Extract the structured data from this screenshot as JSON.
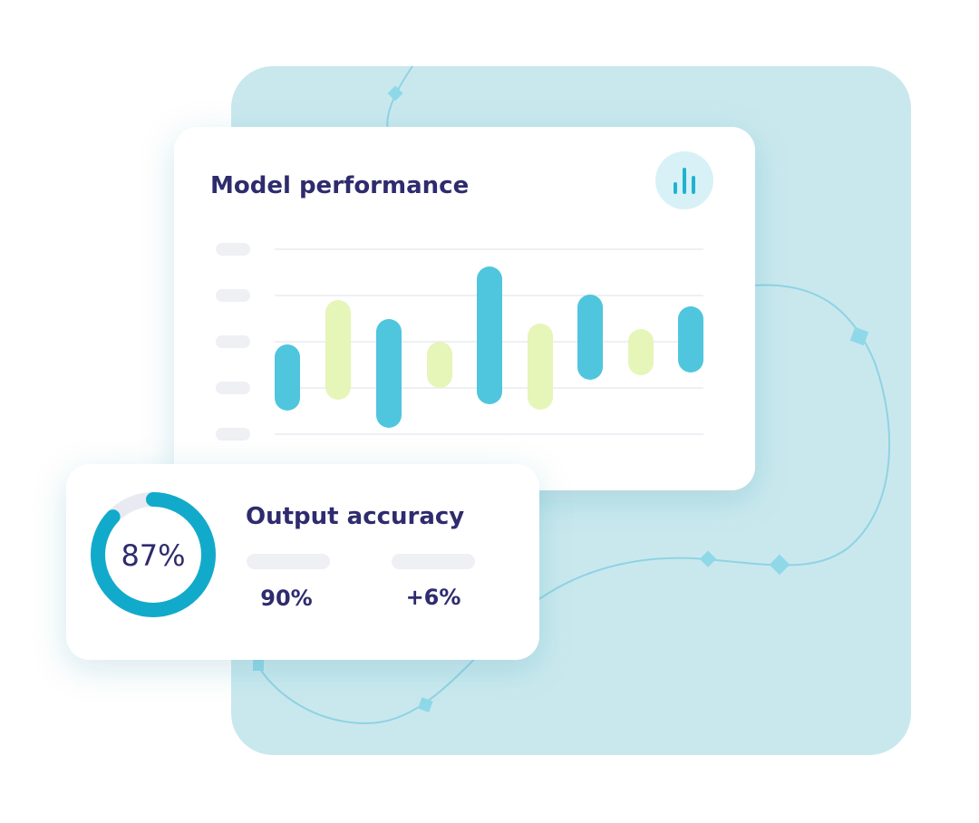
{
  "model_card": {
    "title": "Model performance"
  },
  "accuracy_card": {
    "title": "Output accuracy",
    "gauge": {
      "value": 87,
      "label": "87%"
    },
    "stats": [
      "90%",
      "+6%"
    ]
  }
}
